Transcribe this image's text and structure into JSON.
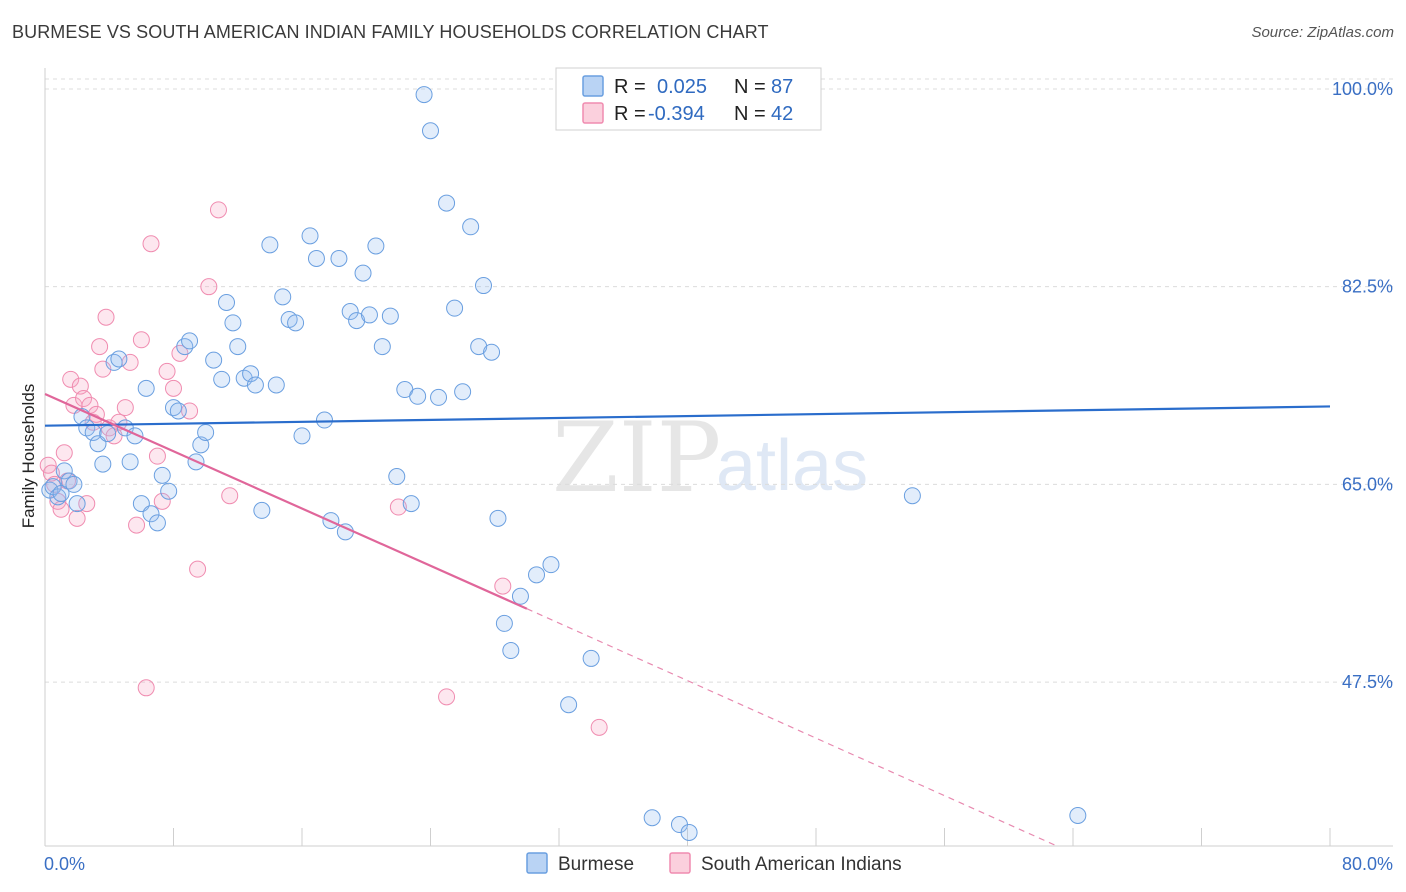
{
  "header": {
    "title": "BURMESE VS SOUTH AMERICAN INDIAN FAMILY HOUSEHOLDS CORRELATION CHART",
    "source": "Source: ZipAtlas.com"
  },
  "watermark": {
    "zip": "ZIP",
    "atlas": "atlas"
  },
  "legend": {
    "rows": [
      {
        "r_label": "R =",
        "r_value": "0.025",
        "n_label": "N =",
        "n_value": "87",
        "color": "#a9c8f0"
      },
      {
        "r_label": "R =",
        "r_value": "-0.394",
        "n_label": "N =",
        "n_value": "42",
        "color": "#f7b8cb"
      }
    ]
  },
  "bottom_legend": {
    "items": [
      "Burmese",
      "South American Indians"
    ]
  },
  "chart_data": {
    "type": "scatter",
    "title": "BURMESE VS SOUTH AMERICAN INDIAN FAMILY HOUSEHOLDS CORRELATION CHART",
    "ylabel": "Family Households",
    "xlabel": "",
    "xlim": [
      0,
      80
    ],
    "ylim": [
      33.0,
      101.5
    ],
    "x_tick_labels": [
      "0.0%",
      "80.0%"
    ],
    "y_ticks": [
      47.5,
      65.0,
      82.5,
      100.0
    ],
    "y_tick_labels": [
      "47.5%",
      "65.0%",
      "82.5%",
      "100.0%"
    ],
    "grid": true,
    "legend_position": "top-center",
    "colors": {
      "burmese": "#3a7bd5",
      "south_american_indians": "#e0709a"
    },
    "series": [
      {
        "name": "Burmese",
        "color": "#6a9fe0",
        "trend": {
          "x": [
            0,
            80
          ],
          "y": [
            70.2,
            71.9
          ],
          "style": "solid"
        },
        "x": [
          0.3,
          0.5,
          0.8,
          1.0,
          1.2,
          1.5,
          1.8,
          2.0,
          2.3,
          2.6,
          3.0,
          3.3,
          3.6,
          3.9,
          4.3,
          4.6,
          5.0,
          5.3,
          5.6,
          6.0,
          6.3,
          6.6,
          7.0,
          7.3,
          7.7,
          8.0,
          8.3,
          8.7,
          9.0,
          9.4,
          9.7,
          10.0,
          10.5,
          11.0,
          11.3,
          11.7,
          12.0,
          12.4,
          12.8,
          13.1,
          13.5,
          14.0,
          14.4,
          14.8,
          15.2,
          15.6,
          16.0,
          16.5,
          16.9,
          17.4,
          17.8,
          18.3,
          18.7,
          19.0,
          19.4,
          19.8,
          20.2,
          20.6,
          21.0,
          21.5,
          21.9,
          22.4,
          22.8,
          23.2,
          23.6,
          24.0,
          24.5,
          25.0,
          25.5,
          26.0,
          26.5,
          27.0,
          27.3,
          27.8,
          28.2,
          28.6,
          29.0,
          29.6,
          30.6,
          31.5,
          32.6,
          34.0,
          37.8,
          39.5,
          40.1,
          54.0,
          64.3
        ],
        "y": [
          64.5,
          64.8,
          63.9,
          64.2,
          66.2,
          65.3,
          65.0,
          63.3,
          71.0,
          70.0,
          69.6,
          68.6,
          66.8,
          69.5,
          75.8,
          76.1,
          70.0,
          67.0,
          69.3,
          63.3,
          73.5,
          62.4,
          61.6,
          65.8,
          64.4,
          71.8,
          71.5,
          77.2,
          77.7,
          67.0,
          68.5,
          69.6,
          76.0,
          74.3,
          81.1,
          79.3,
          77.2,
          74.4,
          74.8,
          73.8,
          62.7,
          86.2,
          73.8,
          81.6,
          79.6,
          79.3,
          69.3,
          87.0,
          85.0,
          70.7,
          61.8,
          85.0,
          60.8,
          80.3,
          79.5,
          83.7,
          80.0,
          86.1,
          77.2,
          79.9,
          65.7,
          73.4,
          63.3,
          72.8,
          99.5,
          96.3,
          72.7,
          89.9,
          80.6,
          73.2,
          87.8,
          77.2,
          82.6,
          76.7,
          62.0,
          52.7,
          50.3,
          55.1,
          57.0,
          57.9,
          45.5,
          49.6,
          35.5,
          34.9,
          34.2,
          64.0,
          35.7
        ]
      },
      {
        "name": "South American Indians",
        "color": "#f08cb0",
        "trend": {
          "x": [
            0,
            30
          ],
          "y": [
            73.0,
            54.0
          ],
          "style": "solid",
          "extension": {
            "x": [
              30,
              63
            ],
            "y": [
              54.0,
              33.0
            ],
            "style": "dashed"
          }
        },
        "x": [
          0.2,
          0.4,
          0.6,
          0.8,
          1.0,
          1.2,
          1.4,
          1.6,
          1.8,
          2.0,
          2.2,
          2.4,
          2.6,
          2.8,
          3.0,
          3.2,
          3.4,
          3.6,
          3.8,
          4.0,
          4.3,
          4.6,
          5.0,
          5.3,
          5.7,
          6.0,
          6.3,
          6.6,
          7.0,
          7.3,
          7.6,
          8.0,
          8.4,
          9.0,
          9.5,
          10.2,
          10.8,
          11.5,
          22.0,
          25.0,
          28.5,
          34.5
        ],
        "y": [
          66.7,
          66.0,
          65.0,
          63.5,
          62.8,
          67.8,
          65.3,
          74.3,
          72.0,
          62.0,
          73.7,
          72.6,
          63.3,
          72.0,
          70.5,
          71.2,
          77.2,
          75.2,
          79.8,
          70.0,
          69.3,
          70.5,
          71.8,
          75.8,
          61.4,
          77.8,
          47.0,
          86.3,
          67.5,
          63.5,
          75.0,
          73.5,
          76.6,
          71.5,
          57.5,
          82.5,
          89.3,
          64.0,
          63.0,
          46.2,
          56.0,
          43.5
        ]
      }
    ]
  }
}
